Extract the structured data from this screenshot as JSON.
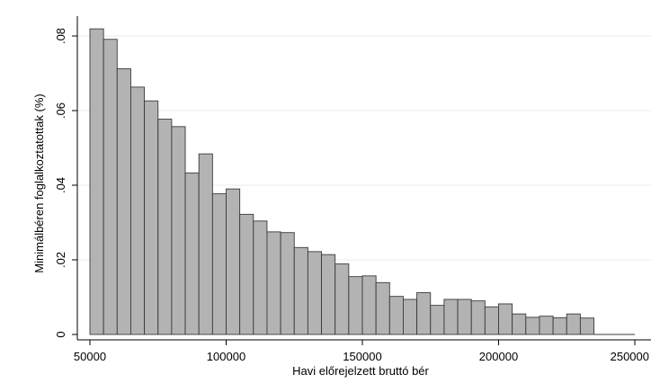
{
  "chart_data": {
    "type": "bar",
    "subtype": "histogram",
    "xlabel": "Havi előrejelzett bruttó bér",
    "ylabel": "Minimálbéren foglalkoztatottak (%)",
    "xlim": [
      50000,
      250000
    ],
    "ylim": [
      0,
      0.08
    ],
    "x_ticks": [
      50000,
      100000,
      150000,
      200000,
      250000
    ],
    "x_tick_labels": [
      "50000",
      "100000",
      "150000",
      "200000",
      "250000"
    ],
    "y_ticks": [
      0,
      0.02,
      0.04,
      0.06,
      0.08
    ],
    "y_tick_labels": [
      "0",
      ".02",
      ".04",
      ".06",
      ".08"
    ],
    "grid": true,
    "bar_color": "#b3b3b3",
    "bar_edge_color": "#3a3a3a",
    "bin_width": 5000,
    "bins": [
      {
        "x0": 50000,
        "x1": 55000,
        "value": 0.0819
      },
      {
        "x0": 55000,
        "x1": 60000,
        "value": 0.0791
      },
      {
        "x0": 60000,
        "x1": 65000,
        "value": 0.0712
      },
      {
        "x0": 65000,
        "x1": 70000,
        "value": 0.0663
      },
      {
        "x0": 70000,
        "x1": 75000,
        "value": 0.0626
      },
      {
        "x0": 75000,
        "x1": 80000,
        "value": 0.0577
      },
      {
        "x0": 80000,
        "x1": 85000,
        "value": 0.0557
      },
      {
        "x0": 85000,
        "x1": 90000,
        "value": 0.0433
      },
      {
        "x0": 90000,
        "x1": 95000,
        "value": 0.0484
      },
      {
        "x0": 95000,
        "x1": 100000,
        "value": 0.0377
      },
      {
        "x0": 100000,
        "x1": 105000,
        "value": 0.039
      },
      {
        "x0": 105000,
        "x1": 110000,
        "value": 0.0322
      },
      {
        "x0": 110000,
        "x1": 115000,
        "value": 0.0304
      },
      {
        "x0": 115000,
        "x1": 120000,
        "value": 0.0275
      },
      {
        "x0": 120000,
        "x1": 125000,
        "value": 0.0273
      },
      {
        "x0": 125000,
        "x1": 130000,
        "value": 0.0233
      },
      {
        "x0": 130000,
        "x1": 135000,
        "value": 0.0222
      },
      {
        "x0": 135000,
        "x1": 140000,
        "value": 0.0214
      },
      {
        "x0": 140000,
        "x1": 145000,
        "value": 0.0189
      },
      {
        "x0": 145000,
        "x1": 150000,
        "value": 0.0155
      },
      {
        "x0": 150000,
        "x1": 155000,
        "value": 0.0157
      },
      {
        "x0": 155000,
        "x1": 160000,
        "value": 0.0139
      },
      {
        "x0": 160000,
        "x1": 165000,
        "value": 0.0102
      },
      {
        "x0": 165000,
        "x1": 170000,
        "value": 0.0094
      },
      {
        "x0": 170000,
        "x1": 175000,
        "value": 0.0112
      },
      {
        "x0": 175000,
        "x1": 180000,
        "value": 0.0078
      },
      {
        "x0": 180000,
        "x1": 185000,
        "value": 0.0094
      },
      {
        "x0": 185000,
        "x1": 190000,
        "value": 0.0094
      },
      {
        "x0": 190000,
        "x1": 195000,
        "value": 0.009
      },
      {
        "x0": 195000,
        "x1": 200000,
        "value": 0.0074
      },
      {
        "x0": 200000,
        "x1": 205000,
        "value": 0.0082
      },
      {
        "x0": 205000,
        "x1": 210000,
        "value": 0.0055
      },
      {
        "x0": 210000,
        "x1": 215000,
        "value": 0.0046
      },
      {
        "x0": 215000,
        "x1": 220000,
        "value": 0.0049
      },
      {
        "x0": 220000,
        "x1": 225000,
        "value": 0.0045
      },
      {
        "x0": 225000,
        "x1": 230000,
        "value": 0.0055
      },
      {
        "x0": 230000,
        "x1": 235000,
        "value": 0.0044
      }
    ]
  }
}
